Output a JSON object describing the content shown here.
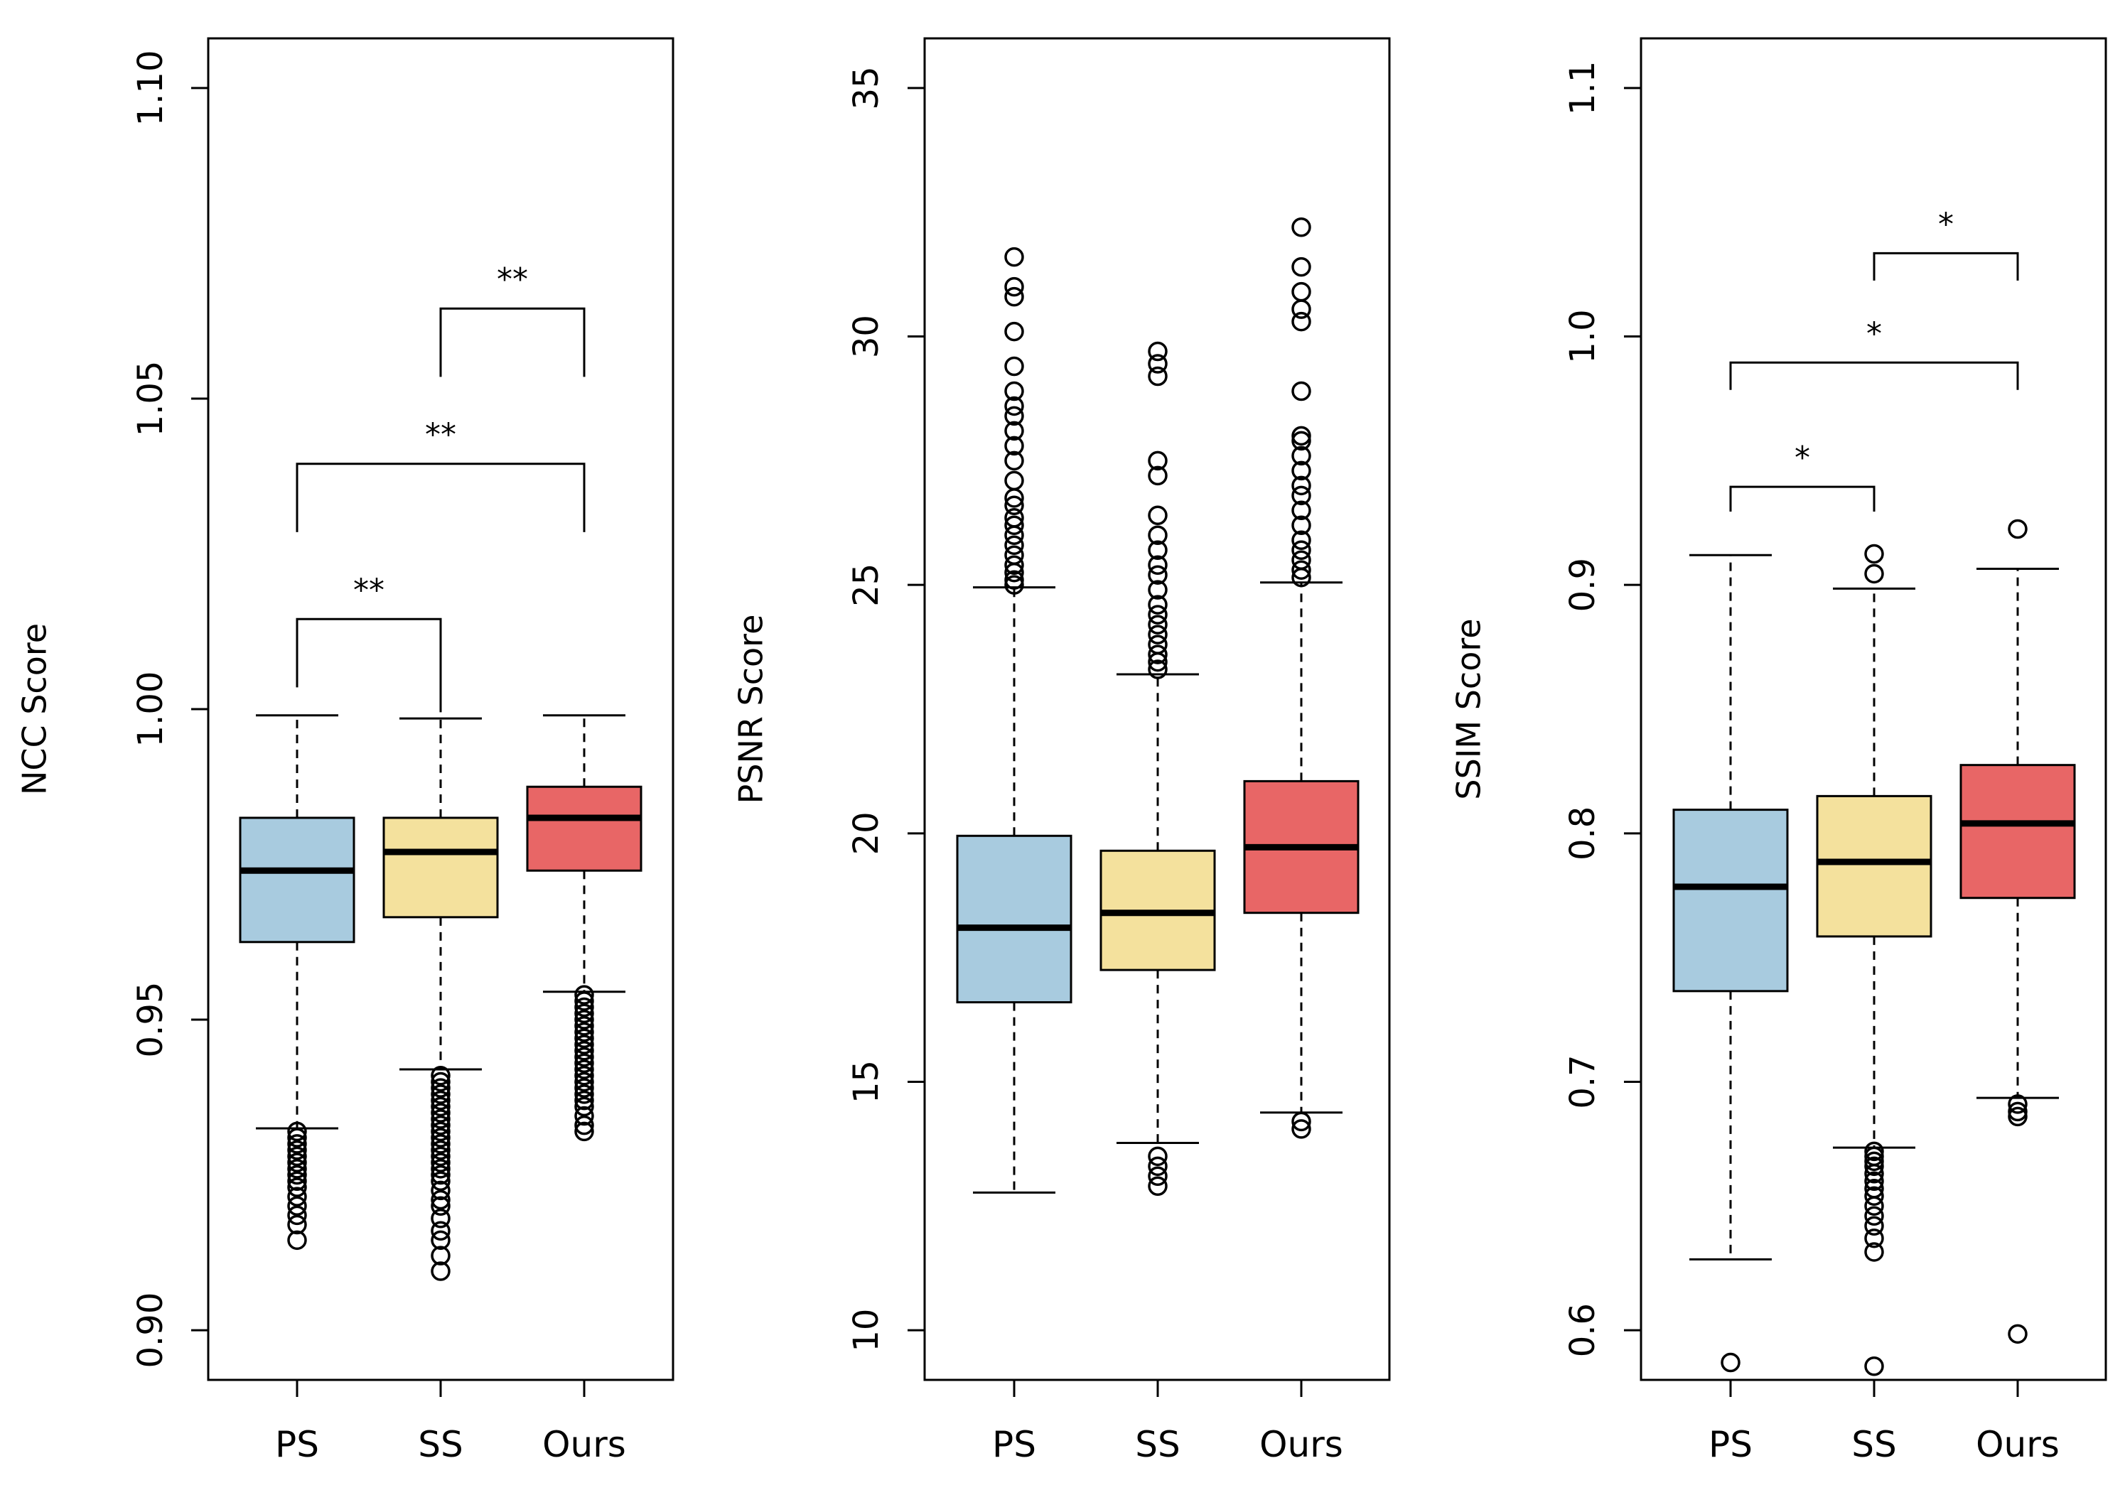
{
  "chart_data": [
    {
      "type": "box",
      "ylabel": "NCC Score",
      "categories": [
        "PS",
        "SS",
        "Ours"
      ],
      "yticks": [
        "0.90",
        "0.95",
        "1.00",
        "1.05",
        "1.10"
      ],
      "ylim": [
        0.892,
        1.108
      ],
      "colors": [
        "#a8cbdf",
        "#f4e19d",
        "#e86666"
      ],
      "boxes": [
        {
          "name": "PS",
          "whisker_low": 0.9325,
          "q1": 0.9625,
          "median": 0.974,
          "q3": 0.9825,
          "whisker_high": 0.999,
          "outliers": [
            0.9145,
            0.917,
            0.9185,
            0.92,
            0.9215,
            0.923,
            0.924,
            0.925,
            0.926,
            0.927,
            0.928,
            0.929,
            0.93,
            0.931,
            0.932
          ]
        },
        {
          "name": "SS",
          "whisker_low": 0.942,
          "q1": 0.9665,
          "median": 0.977,
          "q3": 0.9825,
          "whisker_high": 0.9985,
          "outliers": [
            0.9095,
            0.912,
            0.9145,
            0.916,
            0.918,
            0.92,
            0.921,
            0.9225,
            0.924,
            0.925,
            0.926,
            0.927,
            0.928,
            0.929,
            0.93,
            0.931,
            0.932,
            0.933,
            0.934,
            0.935,
            0.936,
            0.937,
            0.938,
            0.939,
            0.94,
            0.941
          ]
        },
        {
          "name": "Ours",
          "whisker_low": 0.9545,
          "q1": 0.974,
          "median": 0.9825,
          "q3": 0.9875,
          "whisker_high": 0.999,
          "outliers": [
            0.932,
            0.933,
            0.9345,
            0.936,
            0.937,
            0.938,
            0.939,
            0.94,
            0.941,
            0.942,
            0.943,
            0.944,
            0.945,
            0.946,
            0.947,
            0.948,
            0.949,
            0.95,
            0.951,
            0.952,
            0.953,
            0.954
          ]
        }
      ],
      "significance": [
        {
          "from": 0,
          "to": 1,
          "label": "**",
          "y": 1.0145,
          "drop_left": 1.0035,
          "drop_right": 0.9995
        },
        {
          "from": 0,
          "to": 2,
          "label": "**",
          "y": 1.0395,
          "drop_left": 1.0285,
          "drop_right": 1.0285
        },
        {
          "from": 1,
          "to": 2,
          "label": "**",
          "y": 1.0645,
          "drop_left": 1.0535,
          "drop_right": 1.0535
        }
      ]
    },
    {
      "type": "box",
      "ylabel": "PSNR Score",
      "categories": [
        "PS",
        "SS",
        "Ours"
      ],
      "yticks": [
        "10",
        "15",
        "20",
        "25",
        "30",
        "35"
      ],
      "ylim": [
        9.0,
        36.0
      ],
      "colors": [
        "#a8cbdf",
        "#f4e19d",
        "#e86666"
      ],
      "boxes": [
        {
          "name": "PS",
          "whisker_low": 12.77,
          "q1": 16.6,
          "median": 18.1,
          "q3": 19.95,
          "whisker_high": 24.95,
          "outliers": [
            25.0,
            25.1,
            25.25,
            25.4,
            25.6,
            25.8,
            26.0,
            26.2,
            26.35,
            26.6,
            26.75,
            27.1,
            27.5,
            27.8,
            28.1,
            28.4,
            28.6,
            28.9,
            29.4,
            30.1,
            30.8,
            31.0,
            31.6
          ]
        },
        {
          "name": "SS",
          "whisker_low": 13.77,
          "q1": 17.25,
          "median": 18.4,
          "q3": 19.65,
          "whisker_high": 23.2,
          "outliers": [
            12.9,
            13.1,
            13.3,
            13.5,
            23.3,
            23.45,
            23.6,
            23.8,
            24.0,
            24.2,
            24.4,
            24.6,
            24.9,
            25.2,
            25.4,
            25.7,
            26.0,
            26.4,
            27.2,
            27.5,
            29.2,
            29.45,
            29.7
          ]
        },
        {
          "name": "Ours",
          "whisker_low": 14.38,
          "q1": 18.4,
          "median": 19.72,
          "q3": 21.05,
          "whisker_high": 25.05,
          "outliers": [
            14.05,
            14.2,
            25.15,
            25.3,
            25.5,
            25.7,
            25.9,
            26.2,
            26.5,
            26.8,
            27.0,
            27.3,
            27.6,
            27.9,
            28.0,
            28.9,
            30.3,
            30.55,
            30.9,
            31.4,
            32.2
          ]
        }
      ],
      "significance": []
    },
    {
      "type": "box",
      "ylabel": "SSIM Score",
      "categories": [
        "PS",
        "SS",
        "Ours"
      ],
      "yticks": [
        "0.6",
        "0.7",
        "0.8",
        "0.9",
        "1.0",
        "1.1"
      ],
      "ylim": [
        0.58,
        1.12
      ],
      "colors": [
        "#a8cbdf",
        "#f4e19d",
        "#e86666"
      ],
      "boxes": [
        {
          "name": "PS",
          "whisker_low": 0.6285,
          "q1": 0.7365,
          "median": 0.7785,
          "q3": 0.8095,
          "whisker_high": 0.912,
          "outliers": [
            0.587
          ]
        },
        {
          "name": "SS",
          "whisker_low": 0.6735,
          "q1": 0.7585,
          "median": 0.7885,
          "q3": 0.815,
          "whisker_high": 0.8985,
          "outliers": [
            0.5855,
            0.6315,
            0.637,
            0.642,
            0.646,
            0.65,
            0.654,
            0.657,
            0.66,
            0.663,
            0.666,
            0.668,
            0.67,
            0.672,
            0.9045,
            0.9125
          ]
        },
        {
          "name": "Ours",
          "whisker_low": 0.6935,
          "q1": 0.774,
          "median": 0.804,
          "q3": 0.8275,
          "whisker_high": 0.9065,
          "outliers": [
            0.5985,
            0.686,
            0.688,
            0.691,
            0.9225
          ]
        }
      ],
      "significance": [
        {
          "from": 0,
          "to": 1,
          "label": "*",
          "y": 0.9395,
          "drop_left": 0.9295,
          "drop_right": 0.9295
        },
        {
          "from": 0,
          "to": 2,
          "label": "*",
          "y": 0.9895,
          "drop_left": 0.9785,
          "drop_right": 0.9785
        },
        {
          "from": 1,
          "to": 2,
          "label": "*",
          "y": 1.0335,
          "drop_left": 1.0225,
          "drop_right": 1.0225
        }
      ]
    }
  ]
}
